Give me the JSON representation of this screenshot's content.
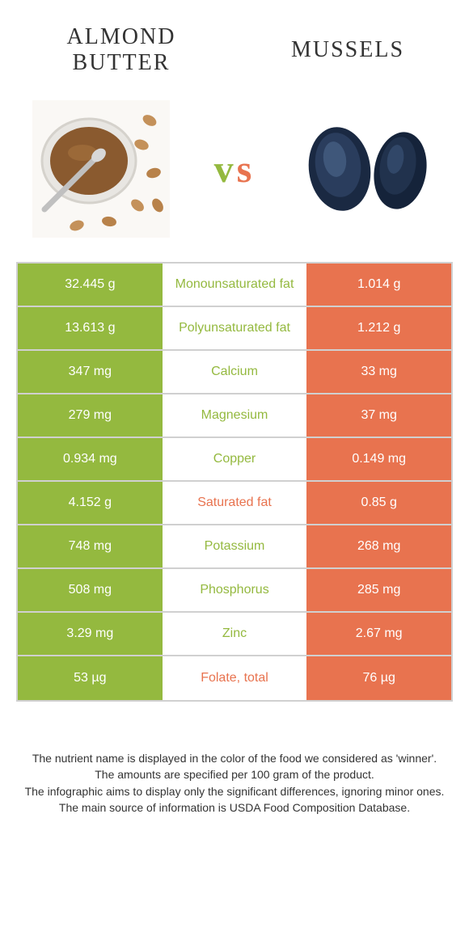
{
  "header": {
    "left_title": "ALMOND BUTTER",
    "right_title": "MUSSELS",
    "vs_v": "v",
    "vs_s": "s"
  },
  "colors": {
    "green": "#94b93f",
    "orange": "#e8734f",
    "border": "#d0d0d0",
    "text": "#333333",
    "white": "#ffffff"
  },
  "table": {
    "rows": [
      {
        "left": "32.445 g",
        "nutrient": "Monounsaturated fat",
        "right": "1.014 g",
        "winner": "green"
      },
      {
        "left": "13.613 g",
        "nutrient": "Polyunsaturated fat",
        "right": "1.212 g",
        "winner": "green"
      },
      {
        "left": "347 mg",
        "nutrient": "Calcium",
        "right": "33 mg",
        "winner": "green"
      },
      {
        "left": "279 mg",
        "nutrient": "Magnesium",
        "right": "37 mg",
        "winner": "green"
      },
      {
        "left": "0.934 mg",
        "nutrient": "Copper",
        "right": "0.149 mg",
        "winner": "green"
      },
      {
        "left": "4.152 g",
        "nutrient": "Saturated fat",
        "right": "0.85 g",
        "winner": "orange"
      },
      {
        "left": "748 mg",
        "nutrient": "Potassium",
        "right": "268 mg",
        "winner": "green"
      },
      {
        "left": "508 mg",
        "nutrient": "Phosphorus",
        "right": "285 mg",
        "winner": "green"
      },
      {
        "left": "3.29 mg",
        "nutrient": "Zinc",
        "right": "2.67 mg",
        "winner": "green"
      },
      {
        "left": "53 µg",
        "nutrient": "Folate, total",
        "right": "76 µg",
        "winner": "orange"
      }
    ]
  },
  "footer": {
    "line1": "The nutrient name is displayed in the color of the food we considered as 'winner'.",
    "line2": "The amounts are specified per 100 gram of the product.",
    "line3": "The infographic aims to display only the significant differences, ignoring minor ones.",
    "line4": "The main source of information is USDA Food Composition Database."
  }
}
